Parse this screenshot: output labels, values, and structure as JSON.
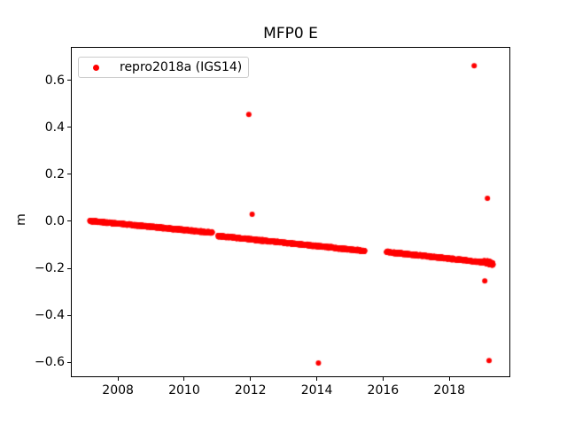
{
  "chart_data": {
    "type": "scatter",
    "title": "MFP0 E",
    "xlabel": "",
    "ylabel": "m",
    "series_name": "repro2018a (IGS14)",
    "marker_color": "#ff0000",
    "legend_position": "upper left",
    "grid": false,
    "xlim": [
      2006.58,
      2019.84
    ],
    "ylim": [
      -0.663,
      0.742
    ],
    "xticks": [
      2008,
      2010,
      2012,
      2014,
      2016,
      2018
    ],
    "yticks": [
      0.6,
      0.4,
      0.2,
      0.0,
      -0.2,
      -0.4,
      -0.6
    ],
    "ytick_labels": [
      "0.6",
      "0.4",
      "0.2",
      "0.0",
      "−0.2",
      "−0.4",
      "−0.6"
    ],
    "trend_segments": [
      {
        "t_start": 2007.15,
        "t_end": 2010.85,
        "v_start": 0.002,
        "v_end": -0.048,
        "n": 950,
        "jitter": 0.005
      },
      {
        "t_start": 2011.02,
        "t_end": 2015.45,
        "v_start": -0.062,
        "v_end": -0.126,
        "n": 1150,
        "jitter": 0.005
      },
      {
        "t_start": 2016.1,
        "t_end": 2019.3,
        "v_start": -0.13,
        "v_end": -0.178,
        "n": 850,
        "jitter": 0.005
      },
      {
        "t_start": 2019.05,
        "t_end": 2019.32,
        "v_start": -0.172,
        "v_end": -0.181,
        "n": 180,
        "jitter": 0.009
      }
    ],
    "outliers": [
      [
        2011.95,
        0.455
      ],
      [
        2012.05,
        0.03
      ],
      [
        2014.05,
        -0.603
      ],
      [
        2018.75,
        0.662
      ],
      [
        2019.15,
        0.098
      ],
      [
        2019.07,
        -0.253
      ],
      [
        2019.2,
        -0.592
      ]
    ]
  }
}
